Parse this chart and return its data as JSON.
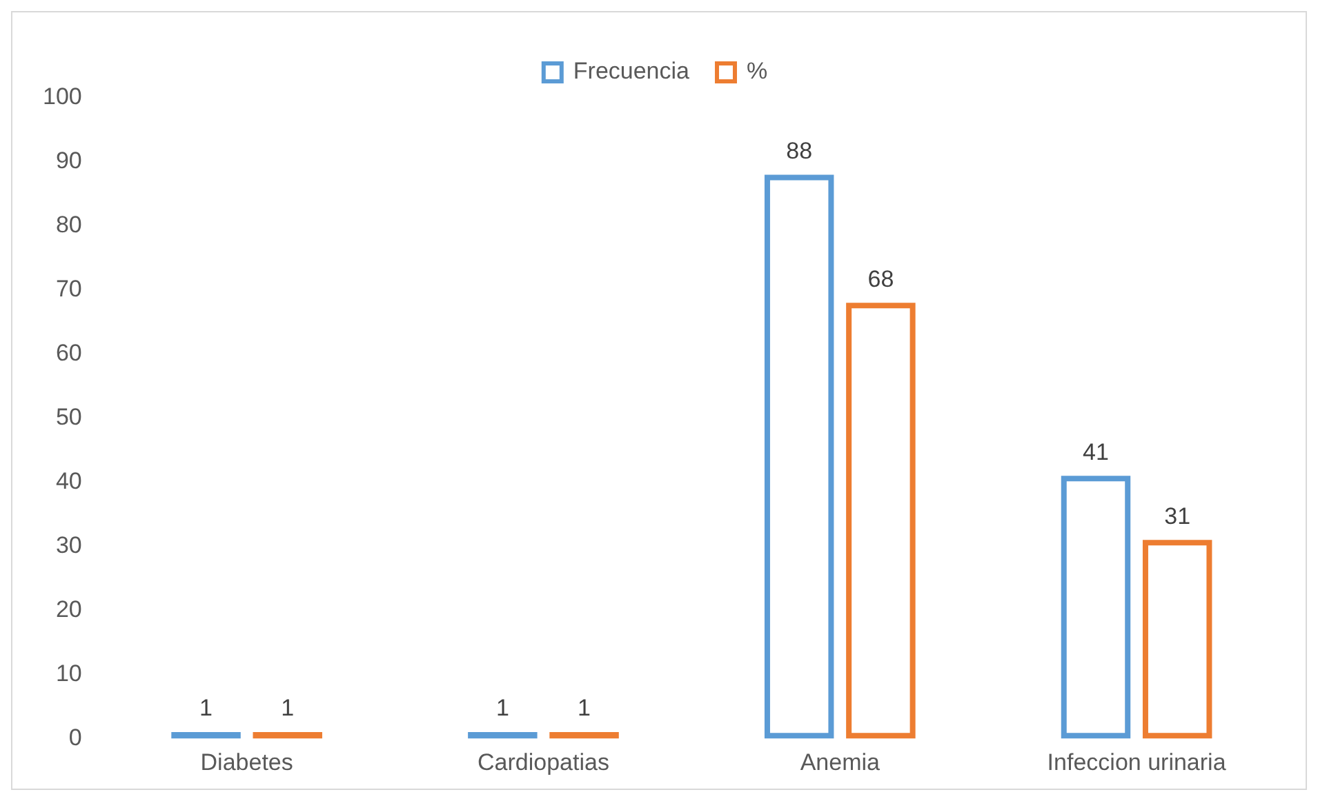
{
  "chart_data": {
    "type": "bar",
    "categories": [
      "Diabetes",
      "Cardiopatias",
      "Anemia",
      "Infeccion urinaria"
    ],
    "series": [
      {
        "name": "Frecuencia",
        "color": "#5b9bd5",
        "values": [
          1,
          1,
          88,
          41
        ]
      },
      {
        "name": "%",
        "color": "#ed7d31",
        "values": [
          1,
          1,
          68,
          31
        ]
      }
    ],
    "ylim": [
      0,
      100
    ],
    "yticks": [
      0,
      10,
      20,
      30,
      40,
      50,
      60,
      70,
      80,
      90,
      100
    ],
    "grid": false,
    "legend": "top",
    "data_labels": true
  }
}
